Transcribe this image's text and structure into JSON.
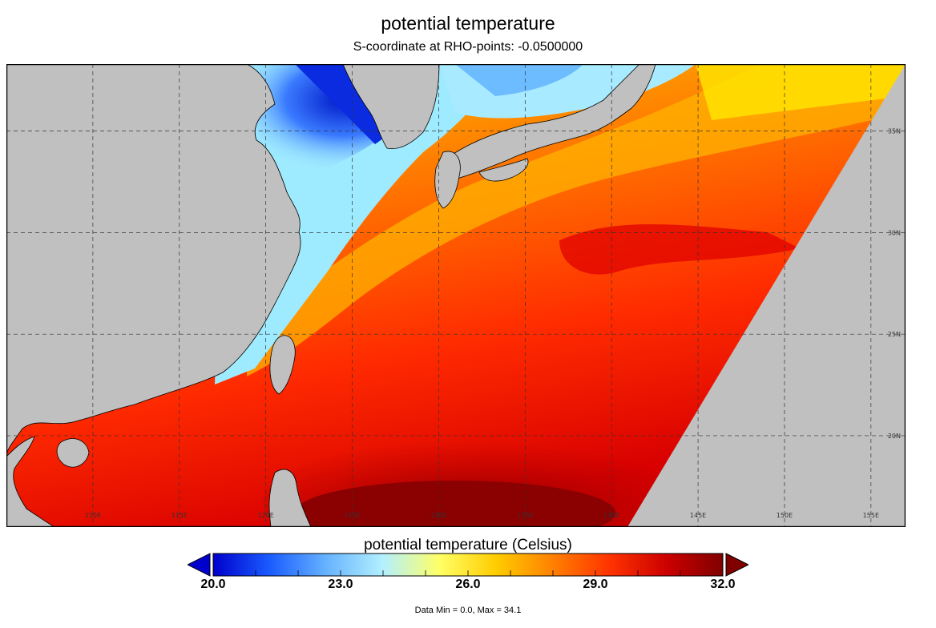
{
  "title": "potential temperature",
  "subtitle": "S-coordinate at RHO-points: -0.0500000",
  "colorbar": {
    "title": "potential temperature (Celsius)",
    "min": 20.0,
    "max": 32.0,
    "ticks": [
      "20.0",
      "23.0",
      "26.0",
      "29.0",
      "32.0"
    ],
    "colors": [
      "#0000cc",
      "#1a5cff",
      "#66b3ff",
      "#b3f0ff",
      "#ffff66",
      "#ffcc00",
      "#ff8000",
      "#ff3300",
      "#cc0000",
      "#800000"
    ]
  },
  "map": {
    "lon_range": [
      105,
      157
    ],
    "lat_range": [
      15.5,
      38.3
    ],
    "lon_labels": [
      "110E",
      "115E",
      "120E",
      "125E",
      "130E",
      "135E",
      "140E",
      "145E",
      "150E",
      "155E"
    ],
    "lat_labels": [
      "20N",
      "25N",
      "30N",
      "35N"
    ],
    "land_color": "#c0c0c0",
    "grid": true
  },
  "data_range_text": "Data Min = 0.0, Max = 34.1"
}
